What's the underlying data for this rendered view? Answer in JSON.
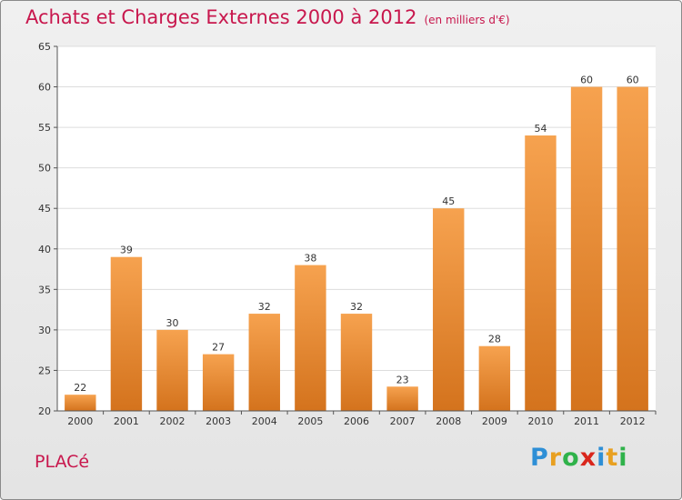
{
  "title": "Achats et Charges Externes 2000 à 2012",
  "subtitle": "(en milliers d'€)",
  "commune": "PLACé",
  "logo": {
    "letters": [
      "P",
      "r",
      "o",
      "x",
      "i",
      "t",
      "i"
    ],
    "colors": [
      "#2e8fd6",
      "#e8a021",
      "#2fb24a",
      "#d9261c",
      "#2e8fd6",
      "#e8a021",
      "#2fb24a"
    ]
  },
  "colors": {
    "bar_top": "#f6a24f",
    "bar_bottom": "#d4731d",
    "title": "#c8174d"
  },
  "chart_data": {
    "type": "bar",
    "title": "Achats et Charges Externes 2000 à 2012",
    "subtitle": "(en milliers d'€)",
    "categories": [
      "2000",
      "2001",
      "2002",
      "2003",
      "2004",
      "2005",
      "2006",
      "2007",
      "2008",
      "2009",
      "2010",
      "2011",
      "2012"
    ],
    "values": [
      22,
      39,
      30,
      27,
      32,
      38,
      32,
      23,
      45,
      28,
      54,
      60,
      60
    ],
    "ylim": [
      20,
      65
    ],
    "yticks": [
      20,
      25,
      30,
      35,
      40,
      45,
      50,
      55,
      60,
      65
    ],
    "grid": true
  }
}
